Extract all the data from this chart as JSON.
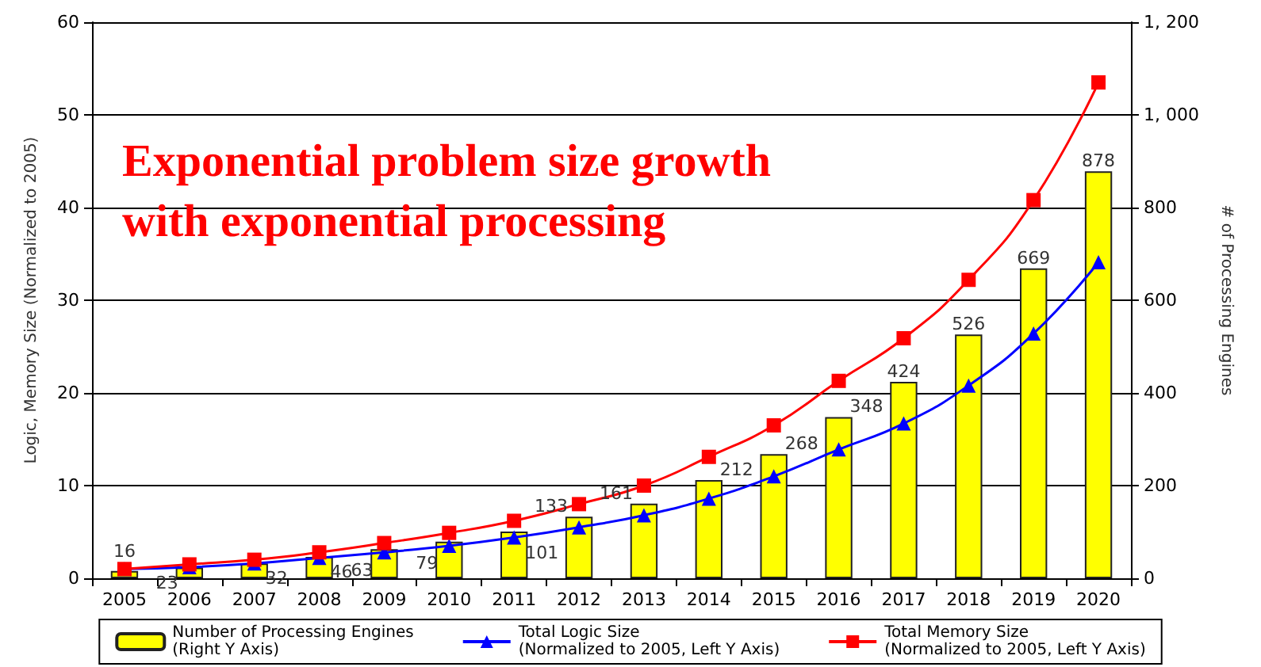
{
  "chart_data": {
    "type": "bar",
    "title": "Exponential problem size growth\nwith exponential processing",
    "ylabel": "Logic, Memory Size (Normalized to 2005)",
    "y2label": "# of Processing Engines",
    "categories": [
      "2005",
      "2006",
      "2007",
      "2008",
      "2009",
      "2010",
      "2011",
      "2012",
      "2013",
      "2014",
      "2015",
      "2016",
      "2017",
      "2018",
      "2019",
      "2020"
    ],
    "series": [
      {
        "name": "Number of Processing Engines\n(Right Y Axis)",
        "type": "bar",
        "axis": "y2",
        "color": "#ffff00",
        "data_labels": true,
        "values": [
          16,
          23,
          32,
          46,
          63,
          79,
          101,
          133,
          161,
          212,
          268,
          348,
          424,
          526,
          669,
          878
        ]
      },
      {
        "name": "Total Logic Size\n(Normalized to 2005, Left Y Axis)",
        "type": "line",
        "marker": "triangle",
        "color": "#0000ff",
        "values": [
          1,
          1.2,
          1.6,
          2.2,
          2.8,
          3.5,
          4.4,
          5.5,
          6.8,
          8.6,
          11,
          13.9,
          16.7,
          20.8,
          26.4,
          34.1
        ]
      },
      {
        "name": "Total Memory Size\n(Normalized to 2005, Left Y Axis)",
        "type": "line",
        "marker": "square",
        "color": "#ff0000",
        "values": [
          1,
          1.5,
          2,
          2.8,
          3.8,
          4.9,
          6.2,
          8,
          10,
          13.1,
          16.5,
          21.3,
          25.9,
          32.2,
          40.8,
          53.5
        ]
      }
    ],
    "ylim": [
      0,
      60
    ],
    "yticks": [
      0,
      10,
      20,
      30,
      40,
      50,
      60
    ],
    "y2lim": [
      0,
      1200
    ],
    "y2ticks": [
      0,
      200,
      400,
      600,
      800,
      {
        "value": 1000,
        "label": "1, 000"
      },
      {
        "value": 1200,
        "label": "1, 200"
      }
    ],
    "grid": "y",
    "legend": "bottom"
  }
}
